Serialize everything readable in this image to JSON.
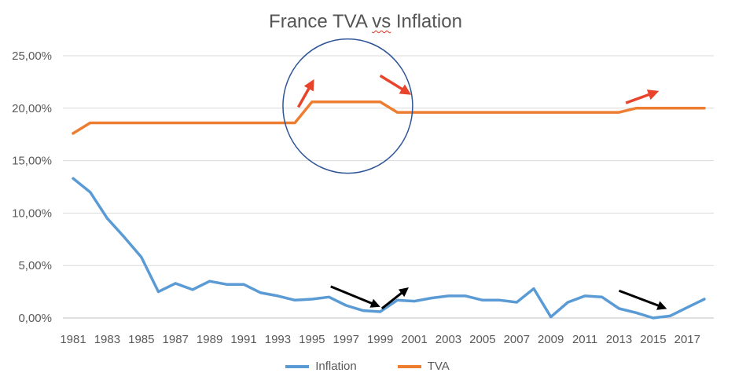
{
  "chart_data": {
    "type": "line",
    "title": "France TVA vs Inflation",
    "title_parts": {
      "before": "France TVA ",
      "underlined": "vs",
      "after": " Inflation"
    },
    "y_tick_labels": [
      "0,00%",
      "5,00%",
      "10,00%",
      "15,00%",
      "20,00%",
      "25,00%"
    ],
    "y_ticks": [
      0,
      5,
      10,
      15,
      20,
      25
    ],
    "ylim": [
      0,
      25
    ],
    "x_tick_labels": [
      "1981",
      "1983",
      "1985",
      "1987",
      "1989",
      "1991",
      "1993",
      "1995",
      "1997",
      "1999",
      "2001",
      "2003",
      "2005",
      "2007",
      "2009",
      "2011",
      "2013",
      "2015",
      "2017"
    ],
    "x": [
      1981,
      1982,
      1983,
      1984,
      1985,
      1986,
      1987,
      1988,
      1989,
      1990,
      1991,
      1992,
      1993,
      1994,
      1995,
      1996,
      1997,
      1998,
      1999,
      2000,
      2001,
      2002,
      2003,
      2004,
      2005,
      2006,
      2007,
      2008,
      2009,
      2010,
      2011,
      2012,
      2013,
      2014,
      2015,
      2016,
      2017,
      2018
    ],
    "xlim": [
      1981,
      2018
    ],
    "grid": true,
    "legend_position": "bottom",
    "series": [
      {
        "name": "Inflation",
        "color": "#5b9bd5",
        "values": [
          13.3,
          12.0,
          9.5,
          7.7,
          5.8,
          2.5,
          3.3,
          2.7,
          3.5,
          3.2,
          3.2,
          2.4,
          2.1,
          1.7,
          1.8,
          2.0,
          1.2,
          0.7,
          0.6,
          1.7,
          1.6,
          1.9,
          2.1,
          2.1,
          1.7,
          1.7,
          1.5,
          2.8,
          0.1,
          1.5,
          2.1,
          2.0,
          0.9,
          0.5,
          0.0,
          0.2,
          1.0,
          1.8
        ]
      },
      {
        "name": "TVA",
        "color": "#ed7d31",
        "values": [
          17.6,
          18.6,
          18.6,
          18.6,
          18.6,
          18.6,
          18.6,
          18.6,
          18.6,
          18.6,
          18.6,
          18.6,
          18.6,
          18.6,
          20.6,
          20.6,
          20.6,
          20.6,
          20.6,
          19.6,
          19.6,
          19.6,
          19.6,
          19.6,
          19.6,
          19.6,
          19.6,
          19.6,
          19.6,
          19.6,
          19.6,
          19.6,
          19.6,
          20.0,
          20.0,
          20.0,
          20.0,
          20.0
        ]
      }
    ],
    "annotations": {
      "circle": {
        "center": [
          1997.1,
          20.2
        ],
        "rx_years": 3.8,
        "ry_pct": 6.4,
        "color": "#2f5597"
      },
      "red_arrows": [
        {
          "from": [
            1994.2,
            20.1
          ],
          "to": [
            1995.0,
            22.4
          ]
        },
        {
          "from": [
            1999.0,
            23.1
          ],
          "to": [
            2000.6,
            21.5
          ]
        },
        {
          "from": [
            2013.4,
            20.5
          ],
          "to": [
            2015.1,
            21.5
          ]
        }
      ],
      "black_arrows": [
        {
          "from": [
            1996.1,
            3.0
          ],
          "to": [
            1998.8,
            1.2
          ]
        },
        {
          "from": [
            1999.1,
            0.9
          ],
          "to": [
            2000.5,
            2.7
          ]
        },
        {
          "from": [
            2013.0,
            2.6
          ],
          "to": [
            2015.6,
            1.0
          ]
        }
      ],
      "red_color": "#e8432b",
      "black_color": "#000000"
    }
  }
}
